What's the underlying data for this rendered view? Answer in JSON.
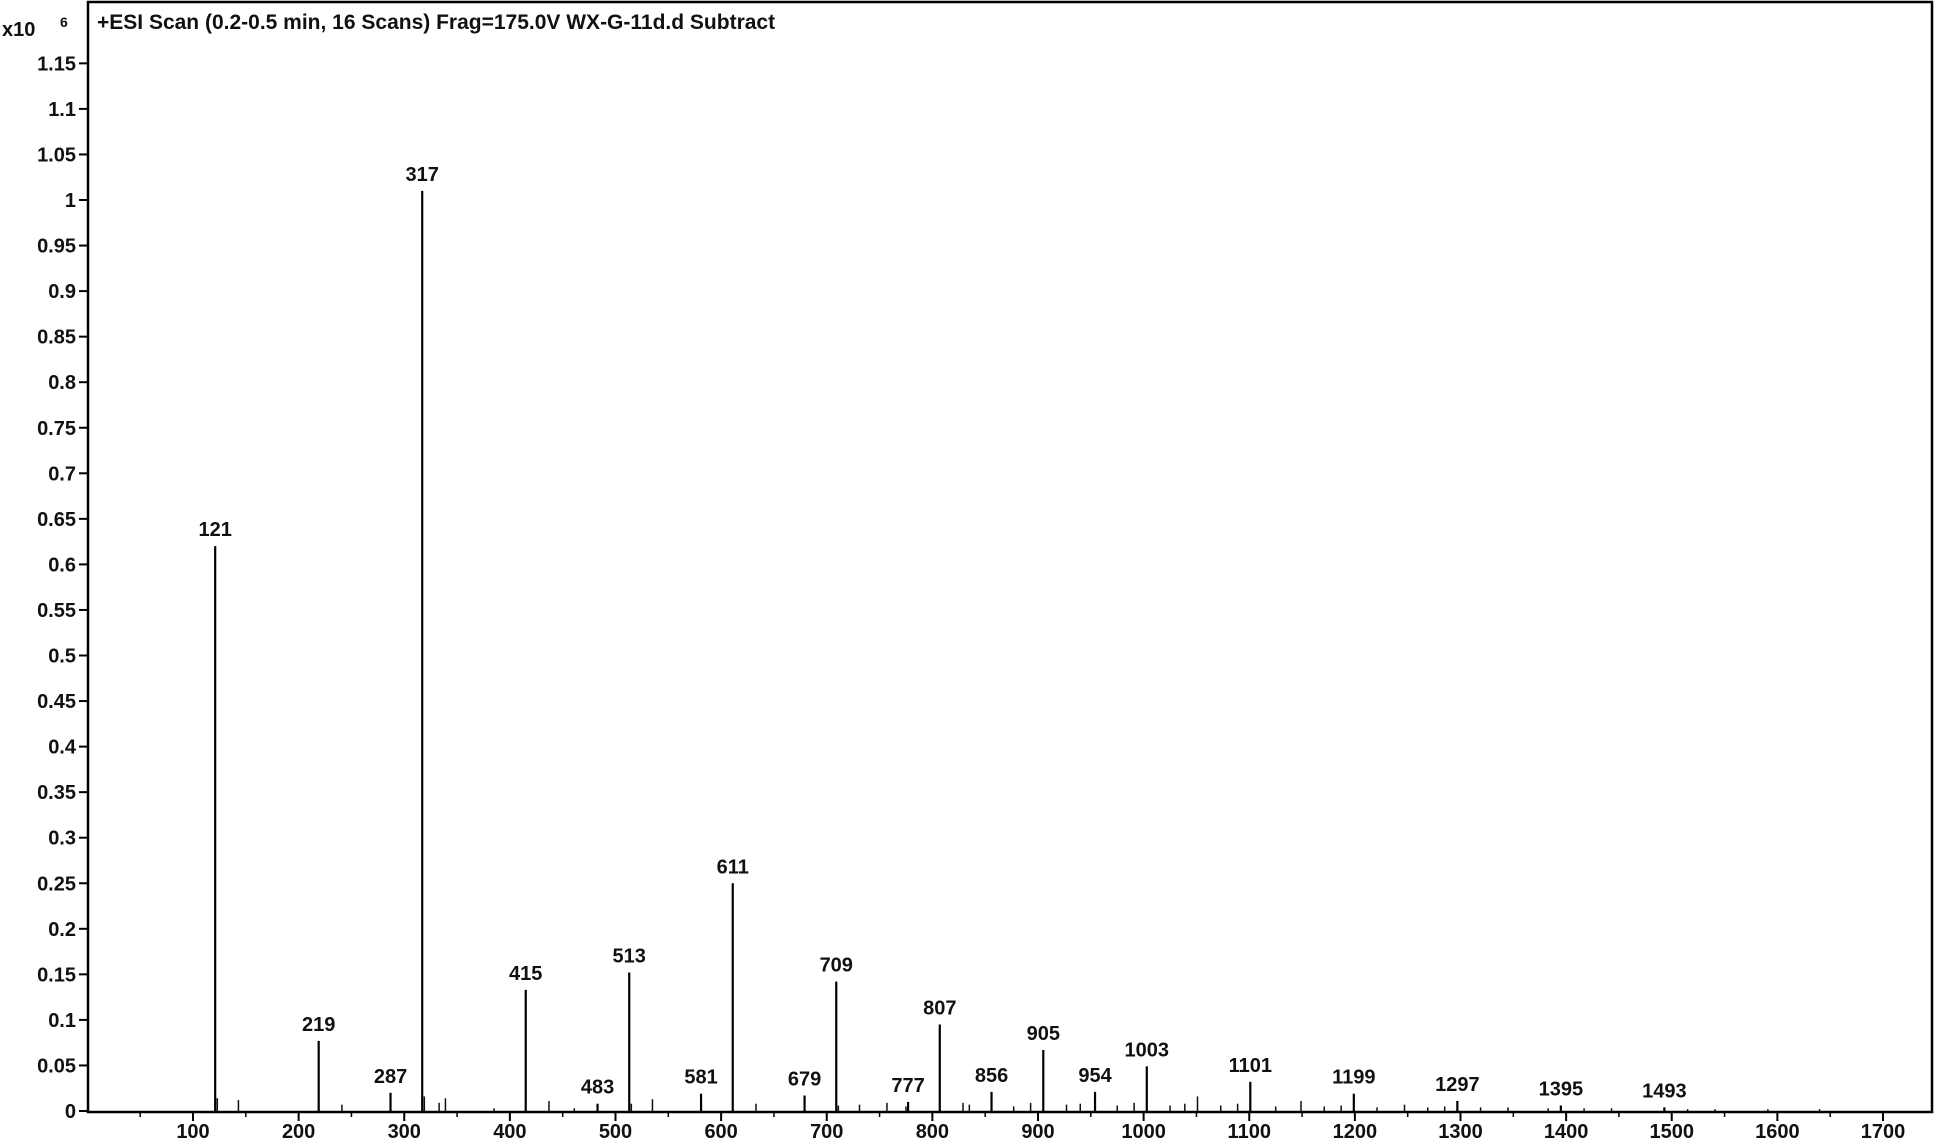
{
  "chart_data": {
    "type": "bar",
    "title": "+ESI Scan (0.2-0.5 min, 16 Scans) Frag=175.0V WX-G-11d.d  Subtract",
    "y_multiplier_label": "x10",
    "y_multiplier_exponent": "6",
    "xlabel": "",
    "ylabel": "",
    "xlim": [
      0,
      1750
    ],
    "ylim": [
      0,
      1.2
    ],
    "x_ticks": [
      100,
      200,
      300,
      400,
      500,
      600,
      700,
      800,
      900,
      1000,
      1100,
      1200,
      1300,
      1400,
      1500,
      1600,
      1700
    ],
    "y_ticks": [
      "0",
      "0.05",
      "0.1",
      "0.15",
      "0.2",
      "0.25",
      "0.3",
      "0.35",
      "0.4",
      "0.45",
      "0.5",
      "0.55",
      "0.6",
      "0.65",
      "0.7",
      "0.75",
      "0.8",
      "0.85",
      "0.9",
      "0.95",
      "1",
      "1.05",
      "1.1",
      "1.15"
    ],
    "labeled_peaks": [
      {
        "x": 121,
        "y": 0.62,
        "label": "121"
      },
      {
        "x": 219,
        "y": 0.077,
        "label": "219"
      },
      {
        "x": 287,
        "y": 0.02,
        "label": "287"
      },
      {
        "x": 317,
        "y": 1.01,
        "label": "317"
      },
      {
        "x": 415,
        "y": 0.133,
        "label": "415"
      },
      {
        "x": 483,
        "y": 0.008,
        "label": "483"
      },
      {
        "x": 513,
        "y": 0.152,
        "label": "513"
      },
      {
        "x": 581,
        "y": 0.019,
        "label": "581"
      },
      {
        "x": 611,
        "y": 0.25,
        "label": "611"
      },
      {
        "x": 679,
        "y": 0.017,
        "label": "679"
      },
      {
        "x": 709,
        "y": 0.142,
        "label": "709"
      },
      {
        "x": 777,
        "y": 0.01,
        "label": "777"
      },
      {
        "x": 807,
        "y": 0.095,
        "label": "807"
      },
      {
        "x": 856,
        "y": 0.021,
        "label": "856"
      },
      {
        "x": 905,
        "y": 0.067,
        "label": "905"
      },
      {
        "x": 954,
        "y": 0.021,
        "label": "954"
      },
      {
        "x": 1003,
        "y": 0.049,
        "label": "1003"
      },
      {
        "x": 1101,
        "y": 0.032,
        "label": "1101"
      },
      {
        "x": 1199,
        "y": 0.019,
        "label": "1199"
      },
      {
        "x": 1297,
        "y": 0.011,
        "label": "1297"
      },
      {
        "x": 1395,
        "y": 0.006,
        "label": "1395"
      },
      {
        "x": 1493,
        "y": 0.004,
        "label": "1493"
      }
    ],
    "minor_peaks": [
      {
        "x": 123,
        "y": 0.014
      },
      {
        "x": 143,
        "y": 0.012
      },
      {
        "x": 241,
        "y": 0.007
      },
      {
        "x": 319,
        "y": 0.016
      },
      {
        "x": 333,
        "y": 0.009
      },
      {
        "x": 339,
        "y": 0.014
      },
      {
        "x": 385,
        "y": 0.003
      },
      {
        "x": 437,
        "y": 0.011
      },
      {
        "x": 461,
        "y": 0.003
      },
      {
        "x": 515,
        "y": 0.008
      },
      {
        "x": 535,
        "y": 0.013
      },
      {
        "x": 633,
        "y": 0.008
      },
      {
        "x": 711,
        "y": 0.006
      },
      {
        "x": 731,
        "y": 0.007
      },
      {
        "x": 757,
        "y": 0.009
      },
      {
        "x": 775,
        "y": 0.005
      },
      {
        "x": 829,
        "y": 0.009
      },
      {
        "x": 835,
        "y": 0.007
      },
      {
        "x": 877,
        "y": 0.005
      },
      {
        "x": 893,
        "y": 0.009
      },
      {
        "x": 927,
        "y": 0.007
      },
      {
        "x": 940,
        "y": 0.008
      },
      {
        "x": 975,
        "y": 0.006
      },
      {
        "x": 991,
        "y": 0.009
      },
      {
        "x": 1025,
        "y": 0.006
      },
      {
        "x": 1039,
        "y": 0.008
      },
      {
        "x": 1051,
        "y": 0.016
      },
      {
        "x": 1073,
        "y": 0.006
      },
      {
        "x": 1089,
        "y": 0.008
      },
      {
        "x": 1125,
        "y": 0.005
      },
      {
        "x": 1149,
        "y": 0.011
      },
      {
        "x": 1171,
        "y": 0.005
      },
      {
        "x": 1187,
        "y": 0.006
      },
      {
        "x": 1221,
        "y": 0.004
      },
      {
        "x": 1247,
        "y": 0.007
      },
      {
        "x": 1269,
        "y": 0.004
      },
      {
        "x": 1285,
        "y": 0.005
      },
      {
        "x": 1319,
        "y": 0.004
      },
      {
        "x": 1345,
        "y": 0.004
      },
      {
        "x": 1383,
        "y": 0.003
      },
      {
        "x": 1417,
        "y": 0.003
      },
      {
        "x": 1443,
        "y": 0.003
      },
      {
        "x": 1515,
        "y": 0.002
      },
      {
        "x": 1541,
        "y": 0.002
      },
      {
        "x": 1591,
        "y": 0.002
      },
      {
        "x": 1640,
        "y": 0.002
      }
    ]
  }
}
